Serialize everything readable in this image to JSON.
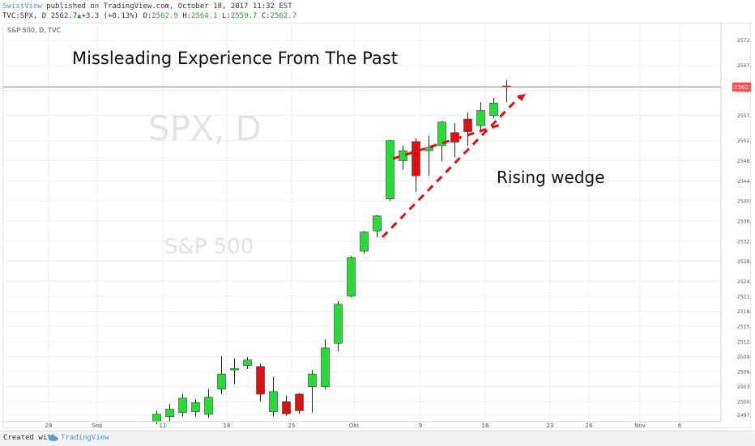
{
  "header": {
    "author": "SwissView",
    "published": " published on TradingView.com, October 18, 2017 11:32 EST",
    "symbol": "TVC:SPX, D 2562.7",
    "arrow": "▲",
    "change": "+3.3 (+0.13%)",
    "o_label": " O:",
    "o_value": "2562.9",
    "h_label": " H:",
    "h_value": "2564.1",
    "l_label": " L:",
    "l_value": "2559.7",
    "c_label": " C:",
    "c_value": "2562.7"
  },
  "pane_label": "S&P 500, D, TVC",
  "watermark": {
    "symbol": "SPX, D",
    "name": "S&P 500"
  },
  "annotations": {
    "title": "Missleading Experience From The Past",
    "pattern": "Rising wedge"
  },
  "price_line": {
    "value": 2562.7,
    "label": "2562.7",
    "color": "#ef5350"
  },
  "colors": {
    "up": "#22dd33",
    "down": "#e01010",
    "wedge": "#e01010"
  },
  "footer": {
    "created": "Created with",
    "brand": "TradingView"
  },
  "chart_data": {
    "type": "candlestick",
    "y_ticks": [
      2497.4,
      2500.0,
      2503.0,
      2506.0,
      2509.0,
      2512.0,
      2515.0,
      2518.0,
      2521.0,
      2524.0,
      2528.0,
      2532.0,
      2536.0,
      2540.0,
      2544.0,
      2548.0,
      2552.0,
      2557.0,
      2562.0,
      2567.0,
      2572.0
    ],
    "y_tick_labels": [
      "2497.4",
      "2500.0",
      "2503.0",
      "2506.0",
      "2509.0",
      "2512.0",
      "2515.0",
      "2518.0",
      "2521.0",
      "2524.0",
      "2528.0",
      "2532.0",
      "2536.0",
      "2540.0",
      "2544.0",
      "2548.0",
      "2552.0",
      "2557.0",
      "2562.0",
      "2567.0",
      "2572.0"
    ],
    "x_ticks": [
      "28",
      "Sep",
      "11",
      "18",
      "25",
      "Okt",
      "9",
      "16",
      "23",
      "26",
      "Nov",
      "6"
    ],
    "candles": [
      {
        "o": 2496.0,
        "h": 2498.2,
        "l": 2495.5,
        "c": 2497.5
      },
      {
        "o": 2497.0,
        "h": 2499.5,
        "l": 2496.0,
        "c": 2498.5
      },
      {
        "o": 2497.8,
        "h": 2501.6,
        "l": 2497.0,
        "c": 2500.7
      },
      {
        "o": 2498.0,
        "h": 2500.5,
        "l": 2497.0,
        "c": 2499.8
      },
      {
        "o": 2497.5,
        "h": 2502.5,
        "l": 2496.8,
        "c": 2500.9
      },
      {
        "o": 2502.5,
        "h": 2509.0,
        "l": 2501.5,
        "c": 2505.5
      },
      {
        "o": 2506.3,
        "h": 2508.6,
        "l": 2503.5,
        "c": 2506.6
      },
      {
        "o": 2507.2,
        "h": 2508.9,
        "l": 2506.5,
        "c": 2508.3
      },
      {
        "o": 2507.0,
        "h": 2507.5,
        "l": 2500.0,
        "c": 2501.5
      },
      {
        "o": 2498.0,
        "h": 2505.0,
        "l": 2497.0,
        "c": 2502.0
      },
      {
        "o": 2500.0,
        "h": 2501.2,
        "l": 2497.2,
        "c": 2497.6
      },
      {
        "o": 2501.5,
        "h": 2501.7,
        "l": 2497.6,
        "c": 2498.2
      },
      {
        "o": 2503.0,
        "h": 2506.3,
        "l": 2497.8,
        "c": 2505.5
      },
      {
        "o": 2503.0,
        "h": 2512.4,
        "l": 2502.5,
        "c": 2510.7
      },
      {
        "o": 2511.6,
        "h": 2520.0,
        "l": 2510.0,
        "c": 2519.4
      },
      {
        "o": 2521.0,
        "h": 2529.0,
        "l": 2520.8,
        "c": 2528.7
      },
      {
        "o": 2530.0,
        "h": 2534.0,
        "l": 2529.5,
        "c": 2533.8
      },
      {
        "o": 2534.0,
        "h": 2537.2,
        "l": 2532.7,
        "c": 2537.0
      },
      {
        "o": 2540.4,
        "h": 2552.1,
        "l": 2540.0,
        "c": 2552.0
      },
      {
        "o": 2548.0,
        "h": 2551.0,
        "l": 2546.3,
        "c": 2550.0
      },
      {
        "o": 2551.8,
        "h": 2552.5,
        "l": 2541.8,
        "c": 2545.0
      },
      {
        "o": 2550.0,
        "h": 2553.0,
        "l": 2545.0,
        "c": 2550.6
      },
      {
        "o": 2551.0,
        "h": 2555.9,
        "l": 2547.9,
        "c": 2555.7
      },
      {
        "o": 2553.6,
        "h": 2555.5,
        "l": 2548.7,
        "c": 2551.7
      },
      {
        "o": 2556.3,
        "h": 2557.6,
        "l": 2551.0,
        "c": 2553.8
      },
      {
        "o": 2555.0,
        "h": 2559.7,
        "l": 2553.8,
        "c": 2558.0
      },
      {
        "o": 2557.0,
        "h": 2560.5,
        "l": 2556.5,
        "c": 2559.5
      },
      {
        "o": 2562.9,
        "h": 2564.1,
        "l": 2559.7,
        "c": 2562.7
      }
    ],
    "ylim": [
      2496.0,
      2575.5
    ]
  }
}
